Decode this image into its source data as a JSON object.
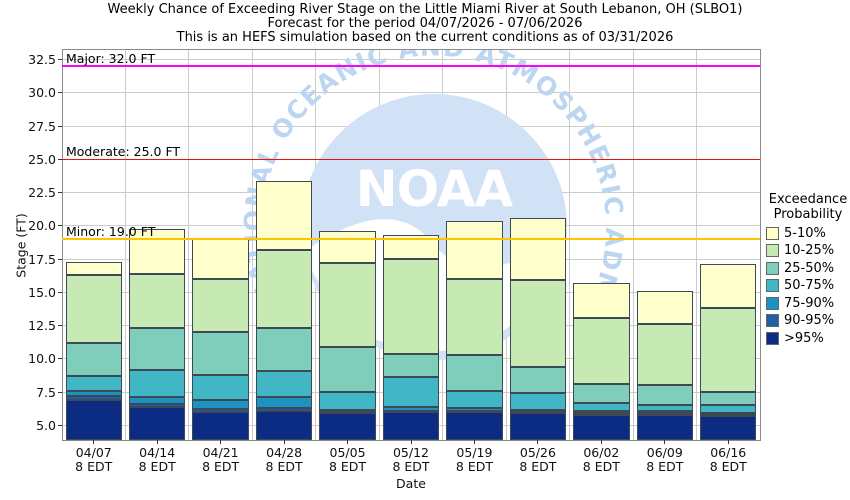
{
  "title": {
    "line1": "Weekly Chance of Exceeding River Stage on the Little Miami River at South Lebanon, OH (SLBO1)",
    "line2": "Forecast for the period 04/07/2026 - 07/06/2026",
    "line3": "This is an HEFS simulation based on the current conditions as of 03/31/2026"
  },
  "y_axis": {
    "label": "Stage (FT)",
    "tick_values": [
      5.0,
      7.5,
      10.0,
      12.5,
      15.0,
      17.5,
      20.0,
      22.5,
      25.0,
      27.5,
      30.0,
      32.5
    ],
    "min": 3.9,
    "max": 33.3
  },
  "x_axis": {
    "label": "Date",
    "tick_sub_label": "8 EDT"
  },
  "thresholds": [
    {
      "name": "major-flood-line",
      "label": "Major: 32.0 FT",
      "value": 32.0,
      "color": "#ff00ff"
    },
    {
      "name": "moderate-flood-line",
      "label": "Moderate: 25.0 FT",
      "value": 25.0,
      "color": "#ee1111"
    },
    {
      "name": "minor-flood-line",
      "label": "Minor: 19.0 FT",
      "value": 19.0,
      "color": "#ffc400"
    }
  ],
  "legend": {
    "title_line1": "Exceedance",
    "title_line2": "Probability"
  },
  "watermark": {
    "arc_text": "NATIONAL OCEANIC AND ATMOSPHERIC ADMINISTRATION",
    "logo_text": "NOAA",
    "circle_color": "#d2e2f6",
    "text_color": "#bcd5f0"
  },
  "chart_data": {
    "type": "bar",
    "stacked": true,
    "title": "Weekly Chance of Exceeding River Stage on the Little Miami River at South Lebanon, OH (SLBO1)",
    "xlabel": "Date",
    "ylabel": "Stage (FT)",
    "ylim": [
      3.9,
      33.3
    ],
    "grid": true,
    "legend_position": "right",
    "categories": [
      "04/07",
      "04/14",
      "04/21",
      "04/28",
      "05/05",
      "05/12",
      "05/19",
      "05/26",
      "06/02",
      "06/09",
      "06/16"
    ],
    "base_stage_ft": 3.9,
    "note": "Each series value is the cumulative top stage (FT) of that exceedance-probability band; bands stack from >95% at the bottom to 5-10% at the top.",
    "series": [
      {
        "name": ">95%",
        "color": "#0C2C84",
        "top_stage_ft": [
          6.9,
          6.4,
          6.0,
          6.1,
          5.9,
          6.0,
          6.0,
          5.9,
          5.8,
          5.8,
          5.7
        ]
      },
      {
        "name": "90-95%",
        "color": "#225EA8",
        "top_stage_ft": [
          7.2,
          6.6,
          6.2,
          6.3,
          6.0,
          6.1,
          6.1,
          6.0,
          5.95,
          5.9,
          5.85
        ]
      },
      {
        "name": "75-90%",
        "color": "#1D91C0",
        "top_stage_ft": [
          7.6,
          7.1,
          6.9,
          7.1,
          6.15,
          6.4,
          6.3,
          6.15,
          6.1,
          6.05,
          5.95
        ]
      },
      {
        "name": "50-75%",
        "color": "#41B6C4",
        "top_stage_ft": [
          8.7,
          9.2,
          8.8,
          9.1,
          7.5,
          8.6,
          7.6,
          7.4,
          6.7,
          6.5,
          6.5
        ]
      },
      {
        "name": "25-50%",
        "color": "#7FCDBB",
        "top_stage_ft": [
          11.2,
          12.3,
          12.0,
          12.3,
          10.9,
          10.4,
          10.3,
          9.4,
          8.1,
          8.0,
          7.5
        ]
      },
      {
        "name": "10-25%",
        "color": "#C7E9B4",
        "top_stage_ft": [
          16.3,
          16.4,
          16.0,
          18.2,
          17.2,
          17.5,
          16.0,
          15.9,
          13.1,
          12.6,
          13.8
        ]
      },
      {
        "name": "5-10%",
        "color": "#FFFFCC",
        "top_stage_ft": [
          17.3,
          19.8,
          19.0,
          23.4,
          19.6,
          19.3,
          20.4,
          20.6,
          15.7,
          15.1,
          17.1
        ]
      }
    ]
  }
}
